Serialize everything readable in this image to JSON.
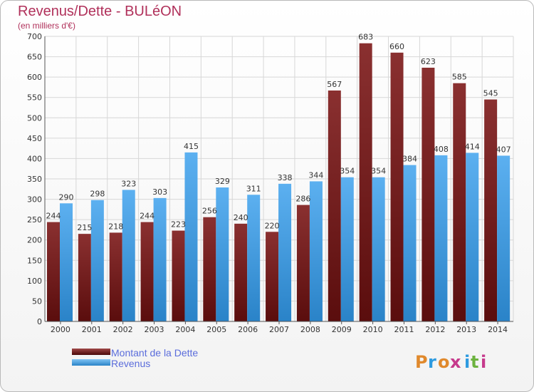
{
  "title": "Revenus/Dette - BULéON",
  "subtitle": "(en milliers d'€)",
  "brand": {
    "letters": [
      "P",
      "r",
      "o",
      "x",
      "i",
      "t",
      "i"
    ]
  },
  "colors": {
    "debt": "#7a1c1c",
    "revenue": "#3c9ae0",
    "grid": "#d7d7d7",
    "title": "#b0305a",
    "legend_text": "#5b6ddb",
    "brand": [
      "#e0892c",
      "#2e9be0",
      "#e0892c",
      "#c63a8c",
      "#2e9be0",
      "#6db33f",
      "#c63a8c"
    ]
  },
  "chart_data": {
    "type": "bar",
    "title": "Revenus/Dette - BULéON",
    "ylabel": "(en milliers d'€)",
    "xlabel": "",
    "categories": [
      "2000",
      "2001",
      "2002",
      "2003",
      "2004",
      "2005",
      "2006",
      "2007",
      "2008",
      "2009",
      "2010",
      "2011",
      "2012",
      "2013",
      "2014"
    ],
    "series": [
      {
        "name": "Montant de la Dette",
        "values": [
          244,
          215,
          218,
          244,
          223,
          256,
          240,
          220,
          286,
          567,
          683,
          660,
          623,
          585,
          545
        ]
      },
      {
        "name": "Revenus",
        "values": [
          290,
          298,
          323,
          303,
          415,
          329,
          311,
          338,
          344,
          354,
          354,
          384,
          408,
          414,
          407
        ]
      }
    ],
    "ylim": [
      0,
      700
    ],
    "yticks": [
      "0",
      "50",
      "100",
      "150",
      "200",
      "250",
      "300",
      "350",
      "400",
      "450",
      "500",
      "550",
      "600",
      "650",
      "700"
    ],
    "grid": true,
    "legend": "bottom-left"
  }
}
